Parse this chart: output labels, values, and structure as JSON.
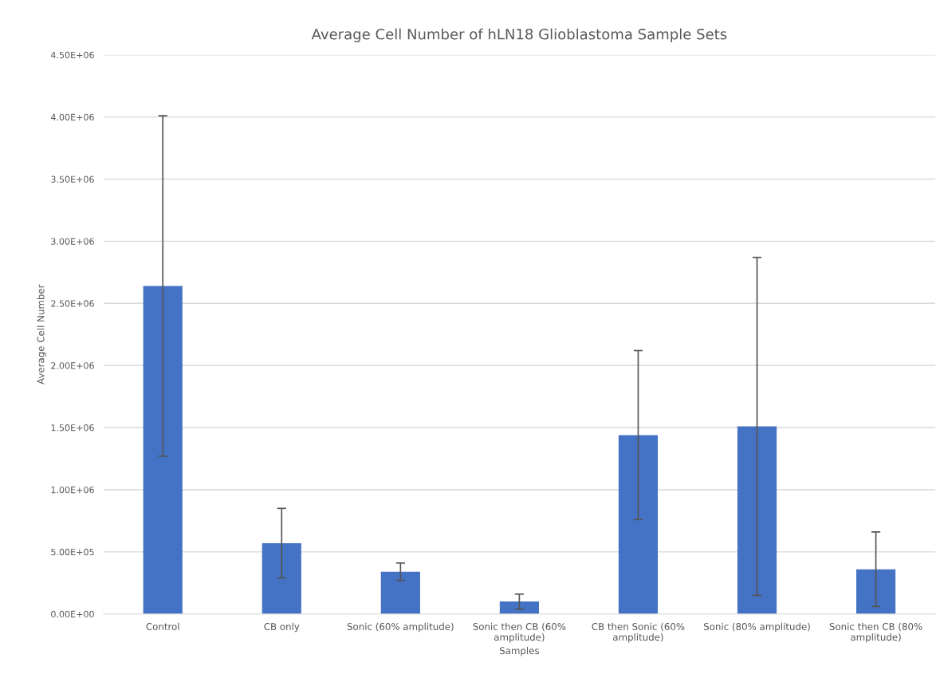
{
  "chart_data": {
    "type": "bar",
    "title": "Average Cell Number of hLN18 Glioblastoma Sample Sets",
    "xlabel": "Samples",
    "ylabel": "Average Cell Number",
    "categories": [
      "Control",
      "CB only",
      "Sonic (60% amplitude)",
      "Sonic then CB (60%\namplitude)",
      "CB then Sonic (60%\namplitude)",
      "Sonic (80% amplitude)",
      "Sonic then CB (80%\namplitude)"
    ],
    "values": [
      2640000,
      570000,
      340000,
      100000,
      1440000,
      1510000,
      360000
    ],
    "errors": [
      1370000,
      280000,
      70000,
      60000,
      680000,
      1360000,
      300000
    ],
    "color": "#4472c4",
    "ylim": [
      0,
      4500000
    ],
    "yticks": [
      {
        "value": 0,
        "label": "0.00E+00"
      },
      {
        "value": 500000,
        "label": "5.00E+05"
      },
      {
        "value": 1000000,
        "label": "1.00E+06"
      },
      {
        "value": 1500000,
        "label": "1.50E+06"
      },
      {
        "value": 2000000,
        "label": "2.00E+06"
      },
      {
        "value": 2500000,
        "label": "2.50E+06"
      },
      {
        "value": 3000000,
        "label": "3.00E+06"
      },
      {
        "value": 3500000,
        "label": "3.50E+06"
      },
      {
        "value": 4000000,
        "label": "4.00E+06"
      },
      {
        "value": 4500000,
        "label": "4.50E+06"
      }
    ],
    "grid": "y"
  }
}
